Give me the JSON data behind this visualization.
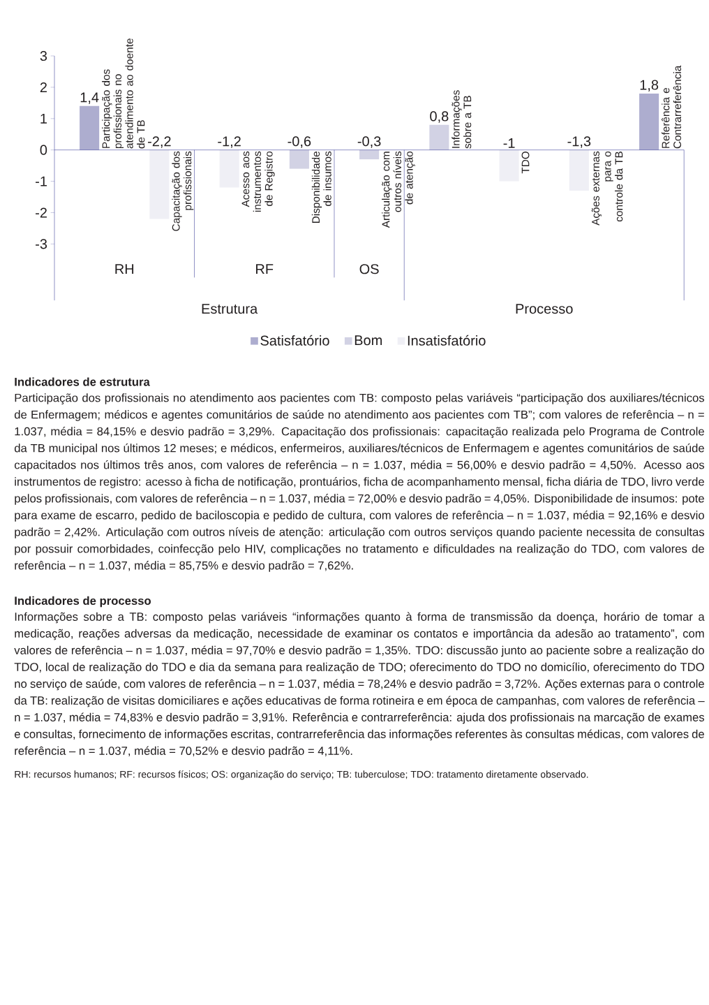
{
  "chart_data": {
    "type": "bar",
    "categories": [
      "Participação dos profissionais no atendimento ao doente de TB",
      "Capacitação dos profissionais",
      "Acesso aos instrumentos de Registro",
      "Disponibilidade de insumos",
      "Articulação com outros níveis de atenção",
      "Informações sobre a TB",
      "TDO",
      "Ações externas para o controle da TB",
      "Referência e Contrarreferência"
    ],
    "series": [
      {
        "name": "Satisfatório",
        "color": "#adadcf",
        "values": [
          1.4,
          null,
          null,
          null,
          null,
          null,
          null,
          null,
          1.8
        ],
        "value_labels": [
          "1,4",
          null,
          null,
          null,
          null,
          null,
          null,
          null,
          "1,8"
        ]
      },
      {
        "name": "Bom",
        "color": "#d2d2e4",
        "values": [
          null,
          null,
          null,
          -0.6,
          -0.3,
          0.8,
          null,
          null,
          null
        ],
        "value_labels": [
          null,
          null,
          null,
          "-0,6",
          "-0,3",
          "0,8",
          null,
          null,
          null
        ]
      },
      {
        "name": "Insatisfatório",
        "color": "#efeff5",
        "values": [
          null,
          -2.2,
          -1.2,
          null,
          null,
          null,
          -1,
          -1.3,
          null
        ],
        "value_labels": [
          null,
          "-2,2",
          "-1,2",
          null,
          null,
          null,
          "-1",
          "-1,3",
          null
        ]
      }
    ],
    "ylim": [
      -4.8,
      3
    ],
    "yticks": [
      -3,
      -2,
      -1,
      0,
      1,
      2,
      3
    ],
    "legend": "bottom",
    "annotations": [
      "RH",
      "RF",
      "OS",
      "Estrutura",
      "Processo",
      "Indicadores de estrutura",
      "Participação dos profissionais no atendimento aos pacientes com TB: composto pelas variáveis “participação dos auxiliares/técnicos de Enfermagem; médicos e agentes comunitários de saúde no atendimento aos pacientes com TB”; com valores de referência – n = 1.037, média = 84,15% e desvio padrão = 3,29%. Capacitação dos profissionais: capacitação realizada pelo Programa de Controle da TB municipal nos últimos 12 meses; e médicos, enfermeiros, auxiliares/técnicos de Enfermagem e agentes comunitários de saúde capacitados nos últimos três anos, com valores de referência – n = 1.037, média = 56,00% e desvio padrão = 4,50%. Acesso aos instrumentos de registro: acesso à ficha de notificação, prontuários, ficha de acompanhamento mensal, ficha diária de TDO, livro verde pelos profissionais, com valores de referência – n = 1.037, média = 72,00% e desvio padrão = 4,05%. Disponibilidade de insumos: pote para exame de escarro, pedido de baciloscopia e pedido de cultura, com valores de referência – n = 1.037, média = 92,16% e desvio padrão = 2,42%. Articulação com outros níveis de atenção: articulação com outros serviços quando paciente necessita de consultas por possuir comorbidades, coinfecção pelo HIV, complicações no tratamento e dificuldades na realização do TDO, com valores de referência – n = 1.037, média = 85,75% e desvio padrão = 7,62%.",
      "Indicadores de processo",
      "Informações sobre a TB: composto pelas variáveis “informações quanto à forma de transmissão da doença, horário de tomar a medicação, reações adversas da medicação, necessidade de examinar os contatos e importância da adesão ao tratamento”, com valores de referência – n = 1.037, média = 97,70% e desvio padrão = 1,35%. TDO: discussão junto ao paciente sobre a realização do TDO, local de realização do TDO e dia da semana para realização de TDO; oferecimento do TDO no domicílio, oferecimento do TDO no serviço de saúde, com valores de referência – n = 1.037, média = 78,24% e desvio padrão = 3,72%. Ações externas para o controle da TB: realização de visitas domiciliares e ações educativas de forma rotineira e em época de campanhas, com valores de referência – n = 1.037, média = 74,83% e desvio padrão = 3,91%. Referência e contrarreferência: ajuda dos profissionais na marcação de exames e consultas, fornecimento de informações escritas, contrarreferência das informações referentes às consultas médicas, com valores de referência – n = 1.037, média = 70,52% e desvio padrão = 4,11%.",
      "RH: recursos humanos; RF: recursos físicos; OS: organização do serviço; TB: tuberculose; TDO: tratamento diretamente observado."
    ]
  }
}
